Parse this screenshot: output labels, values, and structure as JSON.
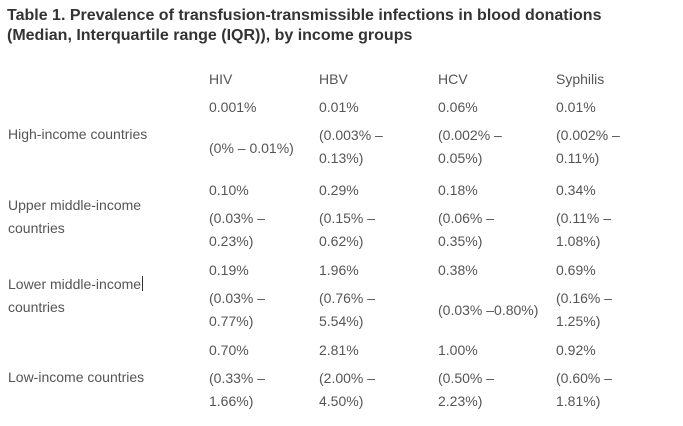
{
  "title": {
    "line1": "Table 1. Prevalence of transfusion-transmissible infections in blood donations",
    "line2": "(Median, Interquartile range (IQR)), by income groups"
  },
  "columns": [
    "HIV",
    "HBV",
    "HCV",
    "Syphilis"
  ],
  "rows": [
    {
      "label": "High-income countries",
      "median": [
        "0.001%",
        "0.01%",
        "0.06%",
        "0.01%"
      ],
      "iqr": [
        "(0% – 0.01%)",
        "(0.003% –\n0.13%)",
        "(0.002% –\n0.05%)",
        "(0.002% –\n0.11%)"
      ]
    },
    {
      "label": "Upper middle-income\ncountries",
      "median": [
        "0.10%",
        "0.29%",
        "0.18%",
        "0.34%"
      ],
      "iqr": [
        "(0.03% –\n0.23%)",
        "(0.15% –\n0.62%)",
        "(0.06% –\n0.35%)",
        "(0.11% –\n1.08%)"
      ]
    },
    {
      "label_line1": "Lower middle-income",
      "label_line2": "countries",
      "median": [
        "0.19%",
        "1.96%",
        "0.38%",
        "0.69%"
      ],
      "iqr": [
        "(0.03% –\n0.77%)",
        "(0.76% –\n5.54%)",
        "(0.03% –0.80%)",
        "(0.16% –\n1.25%)"
      ]
    },
    {
      "label": "Low-income countries",
      "median": [
        "0.70%",
        "2.81%",
        "1.00%",
        "0.92%"
      ],
      "iqr": [
        "(0.33% –\n1.66%)",
        "(2.00% –\n4.50%)",
        "(0.50% –\n2.23%)",
        "(0.60% –\n1.81%)"
      ]
    }
  ]
}
